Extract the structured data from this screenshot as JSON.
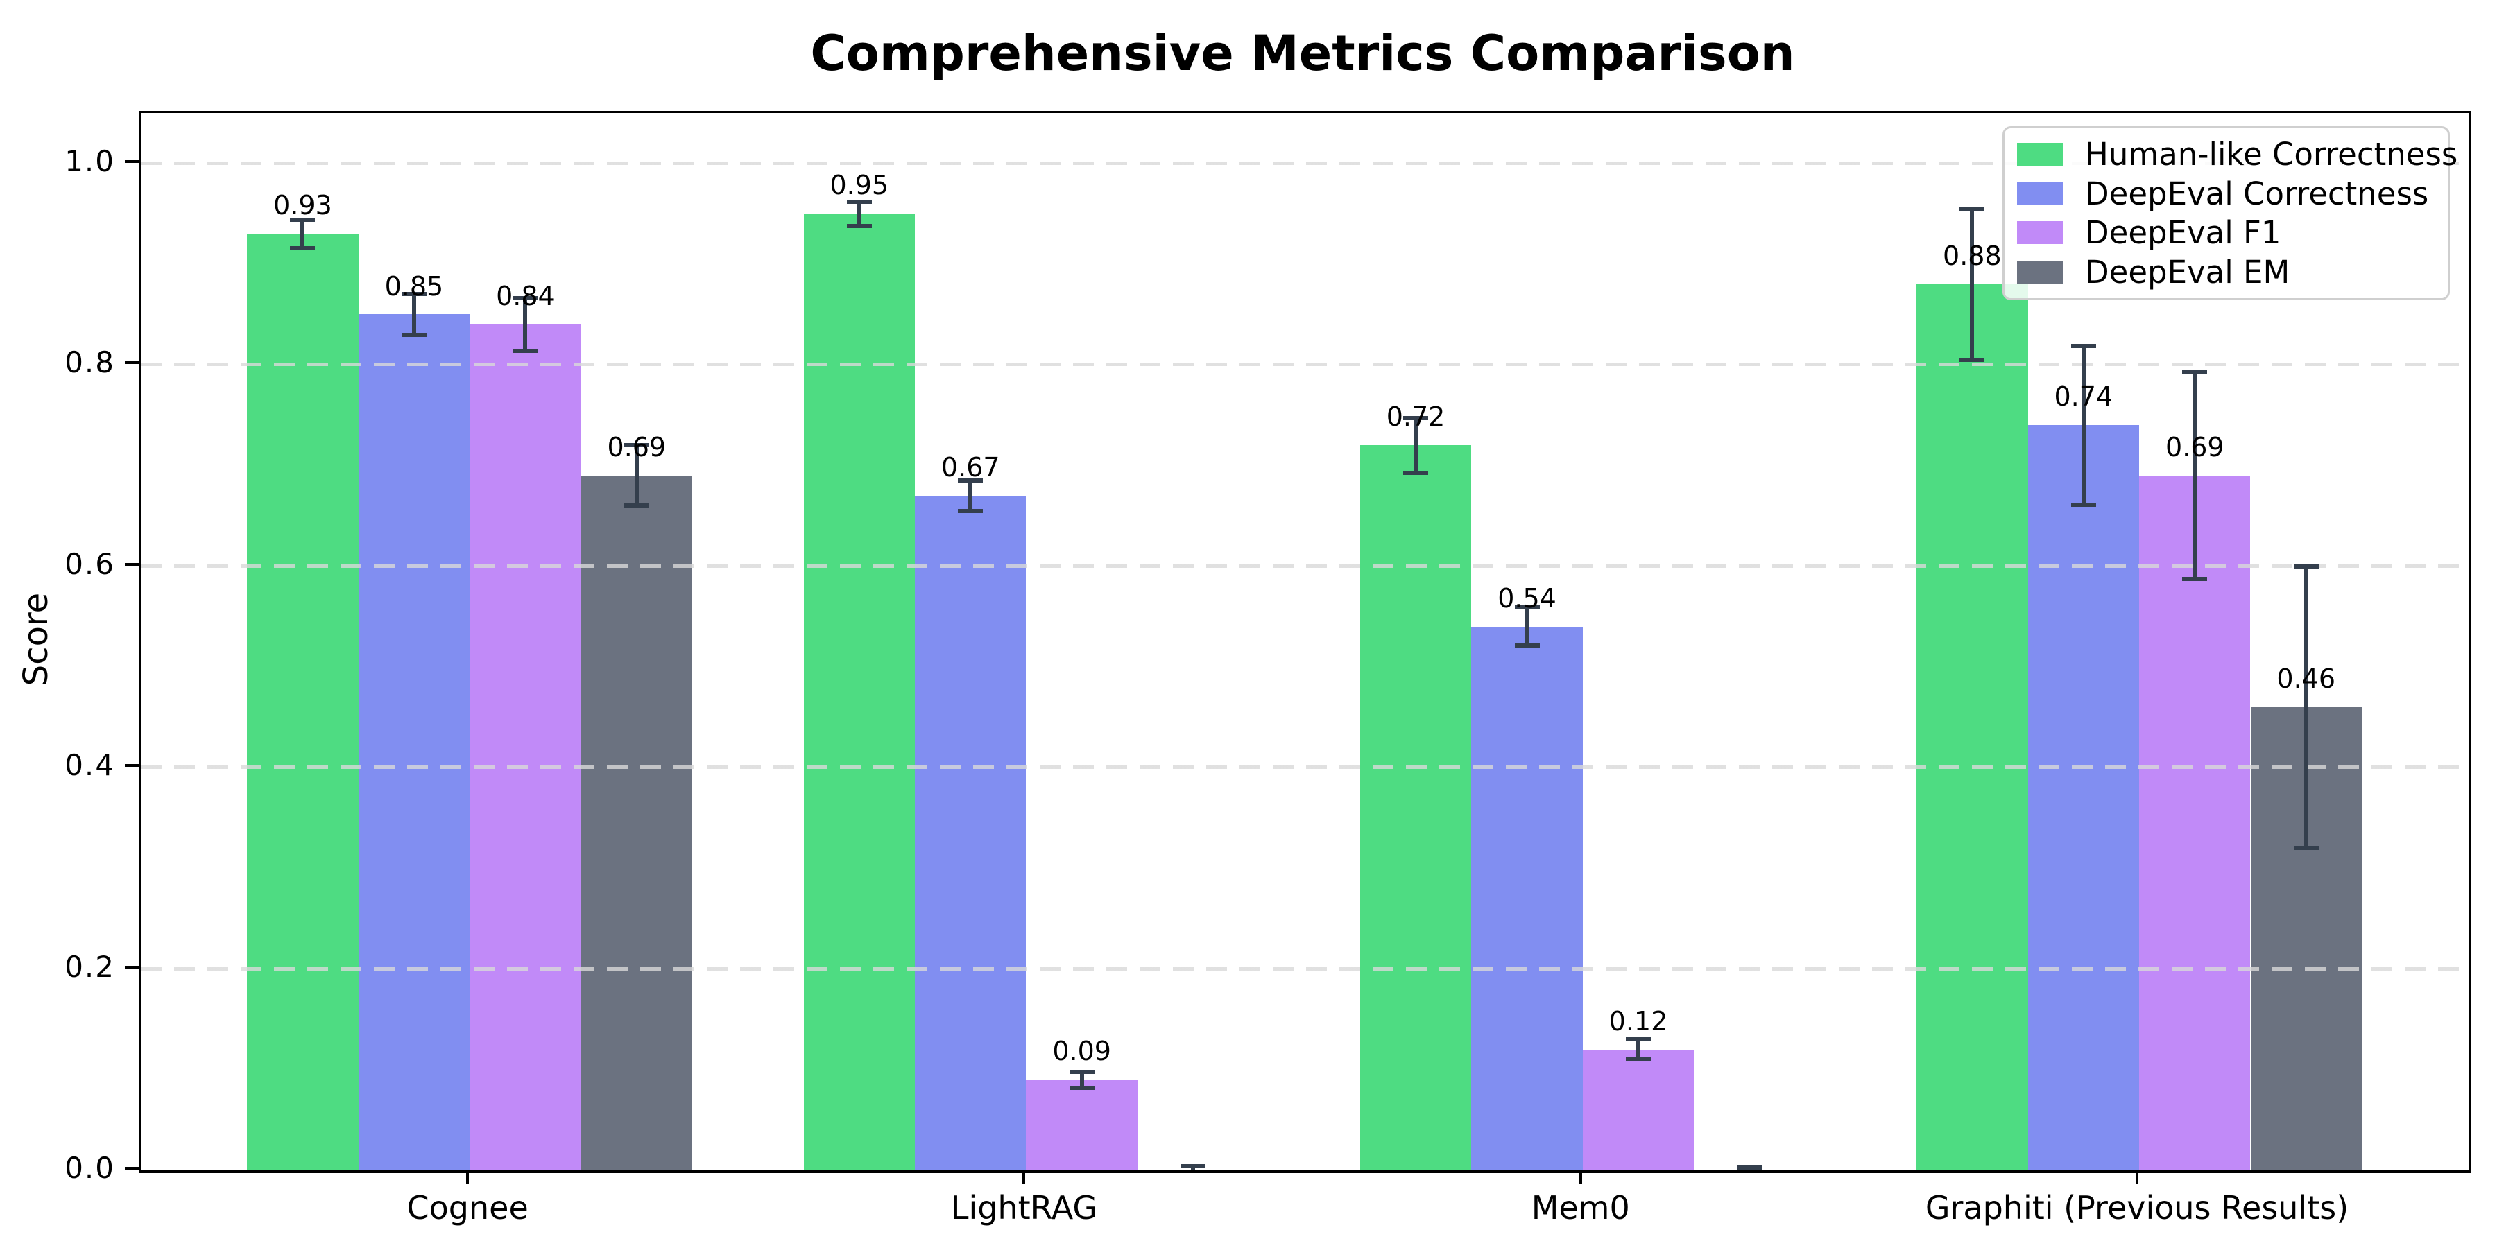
{
  "chart_data": {
    "type": "bar",
    "title": "Comprehensive Metrics Comparison",
    "ylabel": "Score",
    "xlabel": "",
    "categories": [
      "Cognee",
      "LightRAG",
      "Mem0",
      "Graphiti (Previous Results)"
    ],
    "series": [
      {
        "name": "Human-like Correctness",
        "color": "#4edc82",
        "values": [
          0.93,
          0.95,
          0.72,
          0.88
        ],
        "errors": [
          0.014,
          0.012,
          0.027,
          0.075
        ],
        "bar_labels": [
          "0.93",
          "0.95",
          "0.72",
          "0.88"
        ]
      },
      {
        "name": "DeepEval Correctness",
        "color": "#818ef1",
        "values": [
          0.85,
          0.67,
          0.54,
          0.74
        ],
        "errors": [
          0.02,
          0.015,
          0.019,
          0.079
        ],
        "bar_labels": [
          "0.85",
          "0.67",
          "0.54",
          "0.74"
        ]
      },
      {
        "name": "DeepEval F1",
        "color": "#c18af8",
        "values": [
          0.84,
          0.09,
          0.12,
          0.69
        ],
        "errors": [
          0.026,
          0.008,
          0.01,
          0.103
        ],
        "bar_labels": [
          "0.84",
          "0.09",
          "0.12",
          "0.69"
        ]
      },
      {
        "name": "DeepEval EM",
        "color": "#6b7280",
        "values": [
          0.69,
          0.0,
          0.0,
          0.46
        ],
        "errors": [
          0.03,
          0.004,
          0.003,
          0.14
        ],
        "bar_labels": [
          "0.69",
          "",
          "",
          "0.46"
        ]
      }
    ],
    "ytick_labels": [
      "0.0",
      "0.2",
      "0.4",
      "0.6",
      "0.8",
      "1.0"
    ],
    "ytick_values": [
      0,
      0.2,
      0.4,
      0.6,
      0.8,
      1.0
    ],
    "ylim": [
      0,
      1.05
    ],
    "xlim": [
      -0.591,
      3.592
    ],
    "bar_width_units": 0.2,
    "grid": {
      "orientation": "horizontal",
      "style": "dashed",
      "color": "#d9d9d9",
      "drawn_over_bars": true
    },
    "legend": {
      "position": "upper-right",
      "entries": [
        "Human-like Correctness",
        "DeepEval Correctness",
        "DeepEval F1",
        "DeepEval EM"
      ]
    },
    "colors": {
      "error_bar": "#343f4d",
      "axis": "#000000",
      "text": "#000000",
      "background": "#ffffff"
    }
  }
}
